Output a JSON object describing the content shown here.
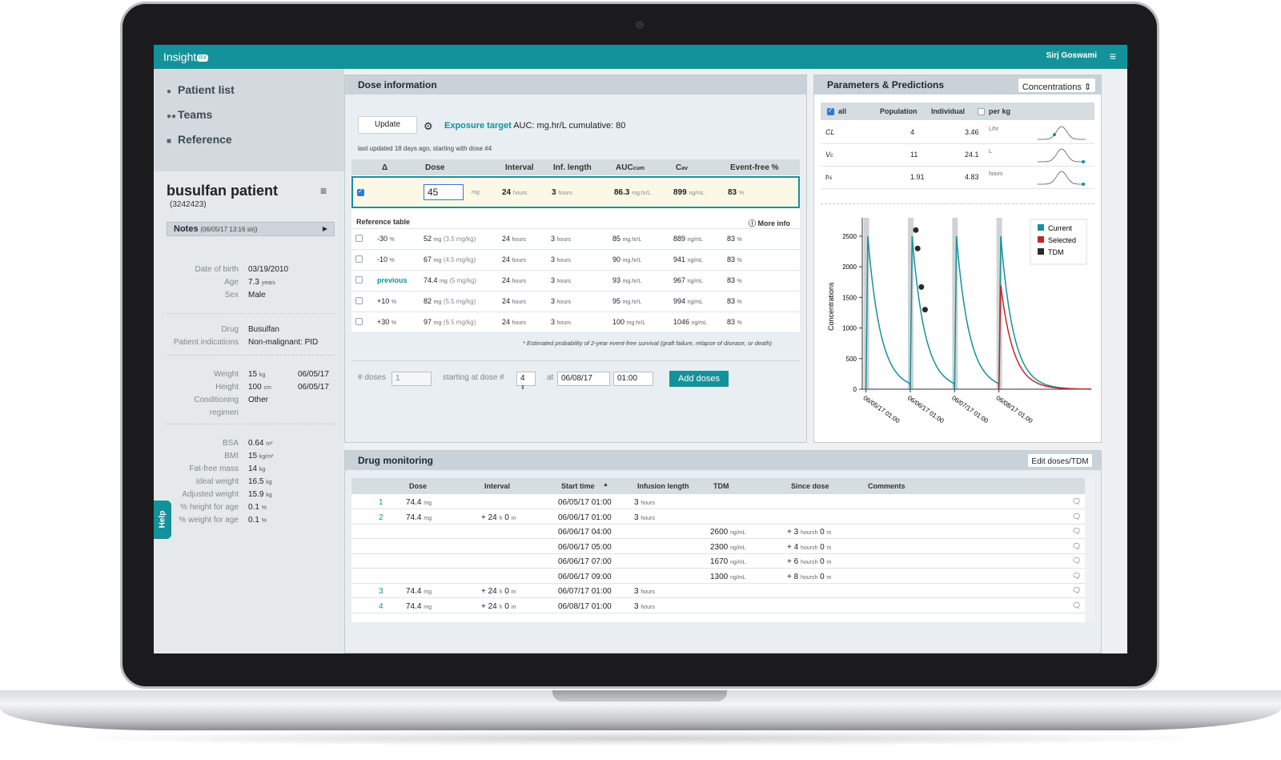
{
  "app": {
    "logo": "Insight",
    "logo_badge": "RX",
    "user": "Sirj Goswami"
  },
  "nav": {
    "items": [
      {
        "label": "Patient list"
      },
      {
        "label": "Teams"
      },
      {
        "label": "Reference"
      }
    ]
  },
  "patient": {
    "name": "busulfan patient",
    "id": "(3242423)",
    "notes_label": "Notes",
    "notes_meta": "(06/05/17 13:16 sirj)",
    "demographics": [
      {
        "k": "Date of birth",
        "v": "03/19/2010"
      },
      {
        "k": "Age",
        "v": "7.3",
        "u": "years"
      },
      {
        "k": "Sex",
        "v": "Male"
      }
    ],
    "drug": [
      {
        "k": "Drug",
        "v": "Busulfan"
      },
      {
        "k": "Patient indications",
        "v": "Non-malignant: PID"
      }
    ],
    "body": [
      {
        "k": "Weight",
        "v": "15",
        "u": "kg",
        "d": "06/05/17"
      },
      {
        "k": "Height",
        "v": "100",
        "u": "cm",
        "d": "06/05/17"
      },
      {
        "k": "Conditioning",
        "v": "Other"
      },
      {
        "k": "regimen",
        "v": ""
      }
    ],
    "metrics": [
      {
        "k": "BSA",
        "v": "0.64",
        "u": "m²"
      },
      {
        "k": "BMI",
        "v": "15",
        "u": "kg/m²"
      },
      {
        "k": "Fat-free mass",
        "v": "14",
        "u": "kg"
      },
      {
        "k": "Ideal weight",
        "v": "16.5",
        "u": "kg"
      },
      {
        "k": "Adjusted weight",
        "v": "15.9",
        "u": "kg"
      },
      {
        "k": "% height for age",
        "v": "0.1",
        "u": "%"
      },
      {
        "k": "% weight for age",
        "v": "0.1",
        "u": "%"
      }
    ],
    "help": "Help"
  },
  "dose": {
    "title": "Dose information",
    "update_label": "Update",
    "target_label": "Exposure target",
    "target_text": "AUC: mg.hr/L cumulative: 80",
    "last_updated": "last updated 18 days ago, starting with dose #4",
    "headers": {
      "delta": "Δ",
      "dose": "Dose",
      "interval": "Interval",
      "inf": "Inf. length",
      "auc": "AUC",
      "auc_sub": "cum",
      "cav": "C",
      "cav_sub": "av",
      "efs": "Event-free %"
    },
    "selected": {
      "dose": "45",
      "dose_unit": "mg",
      "interval": "24",
      "interval_unit": "hours",
      "inf": "3",
      "inf_unit": "hours",
      "auc": "86.3",
      "auc_unit": "mg.hr/L",
      "cav": "899",
      "cav_unit": "ng/mL",
      "efs": "83",
      "efs_unit": "%"
    },
    "ref_title": "Reference table",
    "more_info": "More info",
    "ref_rows": [
      {
        "label": "-30",
        "label_unit": "%",
        "dose": "52",
        "perkg": "(3.5 mg/kg)",
        "interval": "24",
        "inf": "3",
        "auc": "85",
        "cav": "889",
        "efs": "83"
      },
      {
        "label": "-10",
        "label_unit": "%",
        "dose": "67",
        "perkg": "(4.5 mg/kg)",
        "interval": "24",
        "inf": "3",
        "auc": "90",
        "cav": "941",
        "efs": "83"
      },
      {
        "label": "previous",
        "label_unit": "",
        "dose": "74.4",
        "perkg": "(5 mg/kg)",
        "interval": "24",
        "inf": "3",
        "auc": "93",
        "cav": "967",
        "efs": "83"
      },
      {
        "label": "+10",
        "label_unit": "%",
        "dose": "82",
        "perkg": "(5.5 mg/kg)",
        "interval": "24",
        "inf": "3",
        "auc": "95",
        "cav": "994",
        "efs": "83"
      },
      {
        "label": "+30",
        "label_unit": "%",
        "dose": "97",
        "perkg": "(6.5 mg/kg)",
        "interval": "24",
        "inf": "3",
        "auc": "100",
        "cav": "1046",
        "efs": "83"
      }
    ],
    "units": {
      "mg": "mg",
      "hours": "hours",
      "auc": "mg.hr/L",
      "cav": "ng/mL",
      "pct": "%"
    },
    "footnote": "* Estimated probability of 2-year event-free survival (graft failure, relapse of disease, or death)",
    "add": {
      "doses_label": "# doses",
      "doses_value": "1",
      "start_label": "starting at dose #",
      "start_value": "4",
      "at_label": "at",
      "date": "06/08/17",
      "time": "01:00",
      "button": "Add doses"
    }
  },
  "params": {
    "title": "Parameters & Predictions",
    "select": "Concentrations",
    "headers": {
      "all": "all",
      "population": "Population",
      "individual": "Individual",
      "perkg": "per kg"
    },
    "rows": [
      {
        "name": "CL",
        "sub": "",
        "pop": "4",
        "ind": "3.46",
        "unit": "L/hr",
        "pos": 0.35
      },
      {
        "name": "V",
        "sub": "c",
        "pop": "11",
        "ind": "24.1",
        "unit": "L",
        "pos": 0.95
      },
      {
        "name": "t",
        "sub": "½",
        "pop": "1.91",
        "ind": "4.83",
        "unit": "hours",
        "pos": 0.95
      }
    ]
  },
  "chart_data": {
    "type": "line",
    "ylabel": "Concentrations",
    "ylim": [
      0,
      2800
    ],
    "yticks": [
      0,
      500,
      1000,
      1500,
      2000,
      2500
    ],
    "xticks": [
      "06/05/17 01:00",
      "06/06/17 01:00",
      "06/07/17 01:00",
      "06/08/17 01:00"
    ],
    "legend": {
      "position": "top-right",
      "entries": [
        {
          "name": "Current",
          "color": "#14929a"
        },
        {
          "name": "Selected",
          "color": "#c0272d"
        },
        {
          "name": "TDM",
          "color": "#2a2a2a"
        }
      ]
    },
    "dose_markers": [
      0,
      24,
      48,
      72
    ],
    "series": [
      {
        "name": "Current",
        "color": "#14929a",
        "dose_times": [
          0,
          24,
          48,
          72
        ],
        "peak": 2500,
        "peak_after_hours": 3,
        "half_life_hours": 4.83
      },
      {
        "name": "Selected",
        "color": "#c0272d",
        "dose_times": [
          72
        ],
        "peak": 1700,
        "peak_after_hours": 3,
        "half_life_hours": 4.83
      }
    ],
    "tdm": [
      {
        "t": 27,
        "y": 2600
      },
      {
        "t": 28,
        "y": 2300
      },
      {
        "t": 30,
        "y": 1670
      },
      {
        "t": 32,
        "y": 1300
      }
    ],
    "x_range_hours": [
      -2,
      122
    ]
  },
  "monitoring": {
    "title": "Drug monitoring",
    "edit_button": "Edit doses/TDM",
    "headers": [
      "Dose",
      "Interval",
      "Start time",
      "Infusion length",
      "TDM",
      "Since dose",
      "Comments"
    ],
    "sort_icon": "▲",
    "rows": [
      {
        "num": "1",
        "dose": "74.4",
        "dose_unit": "mg",
        "interval": "",
        "start": "06/05/17 01:00",
        "inf": "3",
        "inf_unit": "hours",
        "tdm": "",
        "since": ""
      },
      {
        "num": "2",
        "dose": "74.4",
        "dose_unit": "mg",
        "interval": "+ 24",
        "interval_h": "h",
        "interval_m": "0",
        "interval_mu": "m",
        "start": "06/06/17 01:00",
        "inf": "3",
        "inf_unit": "hours",
        "tdm": "",
        "since": ""
      },
      {
        "num": "",
        "dose": "",
        "interval": "",
        "start": "06/06/17 04:00",
        "inf": "",
        "tdm": "2600",
        "tdm_unit": "ng/mL",
        "since": "+ 3",
        "since_m": "0"
      },
      {
        "num": "",
        "dose": "",
        "interval": "",
        "start": "06/06/17 05:00",
        "inf": "",
        "tdm": "2300",
        "tdm_unit": "ng/mL",
        "since": "+ 4",
        "since_m": "0"
      },
      {
        "num": "",
        "dose": "",
        "interval": "",
        "start": "06/06/17 07:00",
        "inf": "",
        "tdm": "1670",
        "tdm_unit": "ng/mL",
        "since": "+ 6",
        "since_m": "0"
      },
      {
        "num": "",
        "dose": "",
        "interval": "",
        "start": "06/06/17 09:00",
        "inf": "",
        "tdm": "1300",
        "tdm_unit": "ng/mL",
        "since": "+ 8",
        "since_m": "0"
      },
      {
        "num": "3",
        "dose": "74.4",
        "dose_unit": "mg",
        "interval": "+ 24",
        "interval_h": "h",
        "interval_m": "0",
        "interval_mu": "m",
        "start": "06/07/17 01:00",
        "inf": "3",
        "inf_unit": "hours",
        "tdm": "",
        "since": ""
      },
      {
        "num": "4",
        "dose": "74.4",
        "dose_unit": "mg",
        "interval": "+ 24",
        "interval_h": "h",
        "interval_m": "0",
        "interval_mu": "m",
        "start": "06/08/17 01:00",
        "inf": "3",
        "inf_unit": "hours",
        "tdm": "",
        "since": ""
      }
    ]
  }
}
